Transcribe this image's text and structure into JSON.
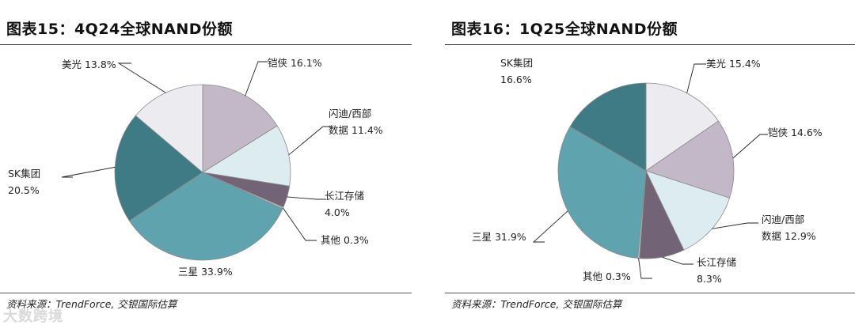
{
  "charts": [
    {
      "title": "图表15：4Q24全球NAND份额",
      "source": "资料来源：TrendForce, 交银国际估算"
    },
    {
      "title": "图表16：1Q25全球NAND份额",
      "source": "资料来源：TrendForce, 交银国际估算"
    }
  ],
  "watermark": "大数跨境",
  "chart_data": [
    {
      "type": "pie",
      "title": "图表15：4Q24全球NAND份额",
      "series": [
        {
          "values": [
            {
              "label": "铠侠",
              "value": 16.1,
              "color": "#c3b8c8",
              "display": [
                "铠侠 16.1%"
              ]
            },
            {
              "label": "闪迪/西部数据",
              "value": 11.4,
              "color": "#dcecf0",
              "display": [
                "闪迪/西部",
                "数据 11.4%"
              ]
            },
            {
              "label": "长江存储",
              "value": 4.0,
              "color": "#726377",
              "display": [
                "长江存储",
                "4.0%"
              ]
            },
            {
              "label": "其他",
              "value": 0.3,
              "color": "#b5c9cf",
              "display": [
                "其他 0.3%"
              ]
            },
            {
              "label": "三星",
              "value": 33.9,
              "color": "#5ea3ad",
              "display": [
                "三星 33.9%"
              ]
            },
            {
              "label": "SK集团",
              "value": 20.5,
              "color": "#3f7b85",
              "display": [
                "SK集团",
                "20.5%"
              ]
            },
            {
              "label": "美光",
              "value": 13.8,
              "color": "#ecebef",
              "display": [
                "美光 13.8%"
              ]
            }
          ]
        }
      ]
    },
    {
      "type": "pie",
      "title": "图表16：1Q25全球NAND份额",
      "series": [
        {
          "values": [
            {
              "label": "美光",
              "value": 15.4,
              "color": "#ecebef",
              "display": [
                "美光 15.4%"
              ]
            },
            {
              "label": "铠侠",
              "value": 14.6,
              "color": "#c3b8c8",
              "display": [
                "铠侠 14.6%"
              ]
            },
            {
              "label": "闪迪/西部数据",
              "value": 12.9,
              "color": "#dcecf0",
              "display": [
                "闪迪/西部",
                "数据 12.9%"
              ]
            },
            {
              "label": "长江存储",
              "value": 8.3,
              "color": "#726377",
              "display": [
                "长江存储",
                "8.3%"
              ]
            },
            {
              "label": "其他",
              "value": 0.3,
              "color": "#b5c9cf",
              "display": [
                "其他 0.3%"
              ]
            },
            {
              "label": "三星",
              "value": 31.9,
              "color": "#5ea3ad",
              "display": [
                "三星 31.9%"
              ]
            },
            {
              "label": "SK集团",
              "value": 16.6,
              "color": "#3f7b85",
              "display": [
                "SK集团",
                "16.6%"
              ]
            }
          ]
        }
      ]
    }
  ]
}
